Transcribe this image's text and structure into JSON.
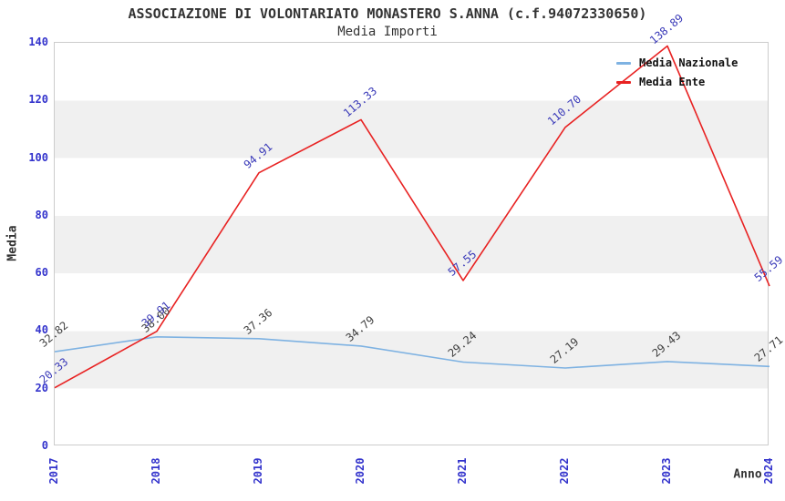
{
  "header": {
    "title": "ASSOCIAZIONE DI VOLONTARIATO MONASTERO S.ANNA (c.f.94072330650)",
    "subtitle": "Media Importi"
  },
  "axes": {
    "y_label": "Media",
    "x_label": "Anno",
    "y_ticks": [
      0,
      20,
      40,
      60,
      80,
      100,
      120,
      140
    ],
    "tick_color": "#3333cc"
  },
  "colors": {
    "band_gray": "#f0f0f0",
    "plot_border": "#cccccc",
    "nazionale_line": "#7EB2E2",
    "ente_line": "#E82222",
    "nazionale_label": "#3f3f3f",
    "ente_label": "#3939b8"
  },
  "chart_data": {
    "type": "line",
    "title": "ASSOCIAZIONE DI VOLONTARIATO MONASTERO S.ANNA (c.f.94072330650)",
    "subtitle": "Media Importi",
    "xlabel": "Anno",
    "ylabel": "Media",
    "categories": [
      "2017",
      "2018",
      "2019",
      "2020",
      "2021",
      "2022",
      "2023",
      "2024"
    ],
    "series": [
      {
        "name": "Media Nazionale",
        "color": "#7EB2E2",
        "label_color": "#3f3f3f",
        "values": [
          32.82,
          38.0,
          37.36,
          34.79,
          29.24,
          27.19,
          29.43,
          27.71
        ]
      },
      {
        "name": "Media Ente",
        "color": "#E82222",
        "label_color": "#3939b8",
        "values": [
          20.33,
          39.91,
          94.91,
          113.33,
          57.55,
          110.7,
          138.89,
          55.59
        ]
      }
    ],
    "ylim": [
      0,
      140
    ],
    "grid": "alternating-horizontal-bands",
    "legend_position": "top-right",
    "point_labels": "values shown with 2 decimals, rotated"
  }
}
